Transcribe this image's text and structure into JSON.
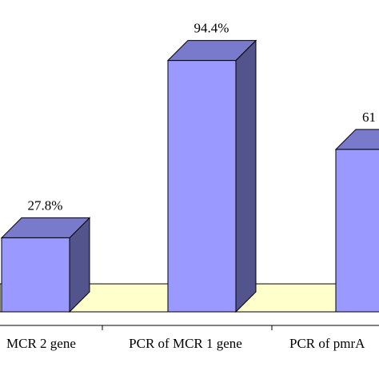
{
  "chart_data": {
    "type": "bar3d",
    "categories": [
      "MCR 2 gene",
      "PCR of MCR 1 gene",
      "PCR of pmrA"
    ],
    "values": [
      27.8,
      94.4,
      61
    ],
    "value_labels": [
      "27.8%",
      "94.4%",
      "61"
    ],
    "color": "#9999ff",
    "floor_color": "#ffffcc"
  }
}
